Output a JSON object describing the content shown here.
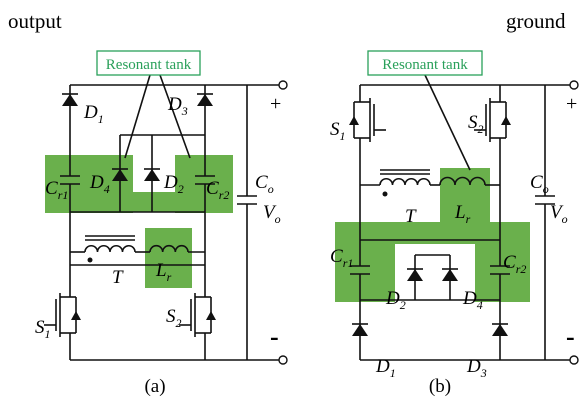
{
  "header": {
    "left": "output",
    "right": "ground"
  },
  "panels": [
    {
      "caption": "(a)",
      "tank": "Resonant tank",
      "plus": "+",
      "minus": "-",
      "labels": [
        {
          "base": "D",
          "sub": "1"
        },
        {
          "base": "D",
          "sub": "3"
        },
        {
          "base": "D",
          "sub": "4"
        },
        {
          "base": "D",
          "sub": "2"
        },
        {
          "base": "C",
          "sub": "r1"
        },
        {
          "base": "C",
          "sub": "r2"
        },
        {
          "base": "C",
          "sub": "o"
        },
        {
          "base": "V",
          "sub": "o"
        },
        {
          "base": "T"
        },
        {
          "base": "L",
          "sub": "r"
        },
        {
          "base": "S",
          "sub": "1"
        },
        {
          "base": "S",
          "sub": "2"
        }
      ]
    },
    {
      "caption": "(b)",
      "tank": "Resonant tank",
      "plus": "+",
      "minus": "-",
      "labels": [
        {
          "base": "S",
          "sub": "1"
        },
        {
          "base": "S",
          "sub": "2"
        },
        {
          "base": "T"
        },
        {
          "base": "L",
          "sub": "r"
        },
        {
          "base": "C",
          "sub": "o"
        },
        {
          "base": "V",
          "sub": "o"
        },
        {
          "base": "C",
          "sub": "r1"
        },
        {
          "base": "D",
          "sub": "2"
        },
        {
          "base": "D",
          "sub": "4"
        },
        {
          "base": "C",
          "sub": "r2"
        },
        {
          "base": "D",
          "sub": "1"
        },
        {
          "base": "D",
          "sub": "3"
        }
      ]
    }
  ]
}
